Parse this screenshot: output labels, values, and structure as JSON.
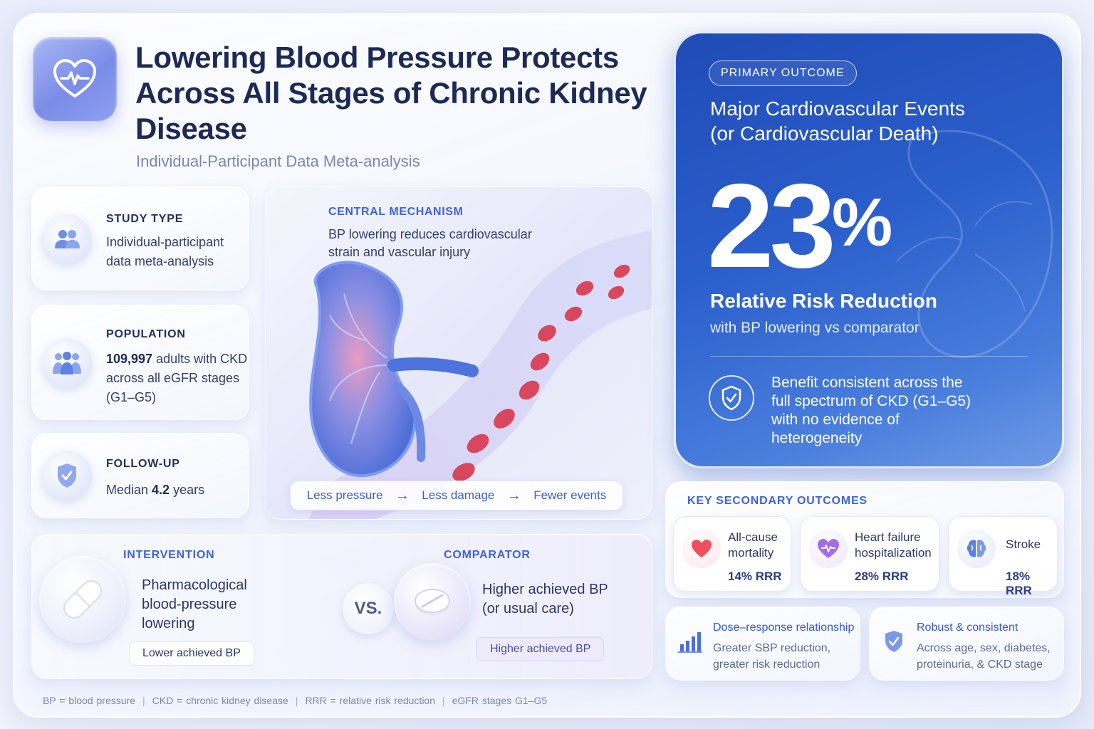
{
  "header": {
    "title": "Lowering Blood Pressure Protects Across All Stages of Chronic Kidney Disease",
    "subtitle": "Individual-Participant Data Meta-analysis"
  },
  "study_type": {
    "label": "STUDY TYPE",
    "line1": "Individual-participant",
    "line2": "data meta-analysis"
  },
  "population": {
    "label": "POPULATION",
    "count": "109,997",
    "line1_rest": " adults with CKD",
    "line2": "across all eGFR stages",
    "line3": "(G1–G5)"
  },
  "followup": {
    "label": "FOLLOW-UP",
    "prefix": "Median ",
    "value": "4.2",
    "suffix": " years"
  },
  "mechanism": {
    "label": "CENTRAL MECHANISM",
    "description": "BP lowering reduces cardiovascular strain and vascular injury",
    "flow": [
      "Less pressure",
      "Less damage",
      "Fewer events"
    ],
    "arrow": "→"
  },
  "primary": {
    "pill": "PRIMARY OUTCOME",
    "heading_line1": "Major Cardiovascular Events",
    "heading_line2": "(or Cardiovascular Death)",
    "value": "23",
    "unit": "%",
    "metric": "Relative Risk Reduction",
    "metric_sub": "with BP lowering vs comparator",
    "consistent": "Benefit consistent across the full spectrum of CKD (G1–G5) with no evidence of heterogeneity"
  },
  "secondary": {
    "label": "KEY SECONDARY OUTCOMES",
    "items": [
      {
        "name1": "All-cause",
        "name2": "mortality",
        "value": "14% RRR",
        "icon": "heart-icon"
      },
      {
        "name1": "Heart failure",
        "name2": "hospitalization",
        "value": "28% RRR",
        "icon": "heart-pulse-icon"
      },
      {
        "name1": "Stroke",
        "name2": "",
        "value": "18% RRR",
        "icon": "brain-icon"
      }
    ]
  },
  "dose": {
    "title": "Dose–response relationship",
    "line1": "Greater SBP reduction,",
    "line2": "greater risk reduction"
  },
  "robust": {
    "title": "Robust & consistent",
    "line1": "Across age, sex, diabetes,",
    "line2": "proteinuria, & CKD stage"
  },
  "intervention": {
    "label": "INTERVENTION",
    "line1": "Pharmacological",
    "line2": "blood-pressure",
    "line3": "lowering",
    "tag": "Lower achieved BP"
  },
  "vs": "VS.",
  "comparator": {
    "label": "COMPARATOR",
    "line1": "Higher achieved BP",
    "line2": "(or usual care)",
    "tag": "Higher achieved BP"
  },
  "footer": [
    "BP = blood pressure",
    "CKD = chronic kidney disease",
    "RRR = relative risk reduction",
    "eGFR stages G1–G5"
  ],
  "colors": {
    "accent": "#3e63d6",
    "primary_bg": "#2b5fcc",
    "heart": "#f0505a",
    "purple": "#9a6ae8"
  }
}
